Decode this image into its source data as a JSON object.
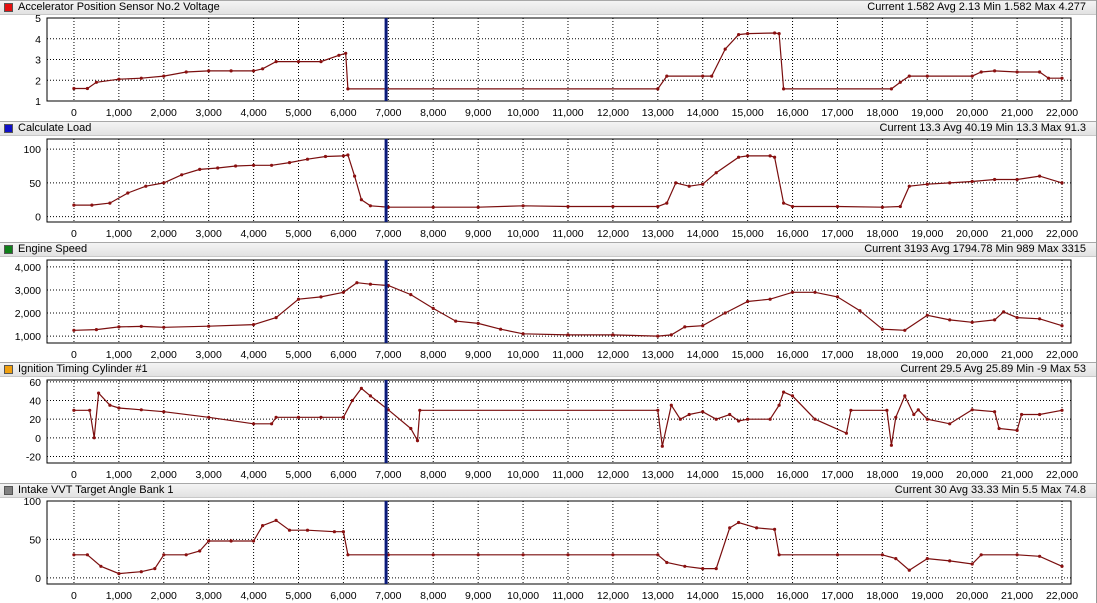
{
  "cursor_x": 6950,
  "chart_data": [
    {
      "type": "line",
      "title": "Accelerator Position Sensor No.2 Voltage",
      "color": "#e41010",
      "stats": "Current 1.582 Avg 2.13 Min 1.582 Max 4.277",
      "xlim": [
        -600,
        22200
      ],
      "ylim": [
        1,
        5
      ],
      "yticks": [
        1,
        2,
        3,
        4,
        5
      ],
      "xticks": [
        0,
        1000,
        2000,
        3000,
        4000,
        5000,
        6000,
        7000,
        8000,
        9000,
        10000,
        11000,
        12000,
        13000,
        14000,
        15000,
        16000,
        17000,
        18000,
        19000,
        20000,
        21000,
        22000
      ],
      "xtick_labels": [
        "0",
        "1,000",
        "2,000",
        "3,000",
        "4,000",
        "5,000",
        "6,000",
        "7,000",
        "8,000",
        "9,000",
        "10,000",
        "11,000",
        "12,000",
        "13,000",
        "14,000",
        "15,000",
        "16,000",
        "17,000",
        "18,000",
        "19,000",
        "20,000",
        "21,000",
        "22,000"
      ],
      "ytick_labels": [
        "1",
        "2",
        "3",
        "4",
        "5"
      ],
      "series": [
        {
          "x": [
            0,
            300,
            500,
            1000,
            1500,
            2000,
            2500,
            3000,
            3500,
            4000,
            4200,
            4500,
            5000,
            5500,
            5900,
            6050,
            6100,
            13000,
            13200,
            14000,
            14200,
            14500,
            14800,
            15000,
            15600,
            15700,
            15800,
            18200,
            18400,
            18600,
            19000,
            20000,
            20200,
            20500,
            21000,
            21500,
            21700,
            22000
          ],
          "y": [
            1.6,
            1.6,
            1.9,
            2.05,
            2.1,
            2.2,
            2.4,
            2.45,
            2.45,
            2.45,
            2.55,
            2.9,
            2.9,
            2.9,
            3.2,
            3.3,
            1.582,
            1.582,
            2.2,
            2.2,
            2.2,
            3.5,
            4.2,
            4.25,
            4.277,
            4.25,
            1.582,
            1.582,
            1.9,
            2.2,
            2.2,
            2.2,
            2.4,
            2.45,
            2.4,
            2.4,
            2.1,
            2.1
          ]
        }
      ]
    },
    {
      "type": "line",
      "title": "Calculate Load",
      "color": "#1010c8",
      "stats": "Current 13.3 Avg 40.19 Min 13.3 Max 91.3",
      "xlim": [
        -600,
        22200
      ],
      "ylim": [
        -8,
        115
      ],
      "yticks": [
        0,
        50,
        100
      ],
      "xticks": [
        0,
        1000,
        2000,
        3000,
        4000,
        5000,
        6000,
        7000,
        8000,
        9000,
        10000,
        11000,
        12000,
        13000,
        14000,
        15000,
        16000,
        17000,
        18000,
        19000,
        20000,
        21000,
        22000
      ],
      "xtick_labels": [
        "0",
        "1,000",
        "2,000",
        "3,000",
        "4,000",
        "5,000",
        "6,000",
        "7,000",
        "8,000",
        "9,000",
        "10,000",
        "11,000",
        "12,000",
        "13,000",
        "14,000",
        "15,000",
        "16,000",
        "17,000",
        "18,000",
        "19,000",
        "20,000",
        "21,000",
        "22,000"
      ],
      "ytick_labels": [
        "0",
        "50",
        "100"
      ],
      "series": [
        {
          "x": [
            0,
            400,
            800,
            1200,
            1600,
            2000,
            2400,
            2800,
            3200,
            3600,
            4000,
            4400,
            4800,
            5200,
            5600,
            6000,
            6100,
            6250,
            6400,
            6600,
            7000,
            8000,
            9000,
            10000,
            11000,
            12000,
            13000,
            13200,
            13400,
            13700,
            14000,
            14300,
            14800,
            15000,
            15500,
            15600,
            15800,
            16000,
            17000,
            18000,
            18400,
            18600,
            19000,
            19500,
            20000,
            20500,
            21000,
            21500,
            22000
          ],
          "y": [
            17,
            17,
            20,
            35,
            45,
            50,
            62,
            70,
            72,
            75,
            76,
            76,
            80,
            85,
            89,
            90,
            91.3,
            60,
            25,
            16,
            14,
            14,
            14,
            16,
            15,
            15,
            15,
            20,
            50,
            45,
            48,
            65,
            88,
            90,
            90,
            88,
            20,
            15,
            15,
            14,
            15,
            45,
            48,
            50,
            52,
            55,
            55,
            60,
            50
          ]
        }
      ]
    },
    {
      "type": "line",
      "title": "Engine Speed",
      "color": "#10801a",
      "stats": "Current 3193 Avg 1794.78 Min 989 Max 3315",
      "xlim": [
        -600,
        22200
      ],
      "ylim": [
        700,
        4300
      ],
      "yticks": [
        1000,
        2000,
        3000,
        4000
      ],
      "xticks": [
        0,
        1000,
        2000,
        3000,
        4000,
        5000,
        6000,
        7000,
        8000,
        9000,
        10000,
        11000,
        12000,
        13000,
        14000,
        15000,
        16000,
        17000,
        18000,
        19000,
        20000,
        21000,
        22000
      ],
      "xtick_labels": [
        "0",
        "1,000",
        "2,000",
        "3,000",
        "4,000",
        "5,000",
        "6,000",
        "7,000",
        "8,000",
        "9,000",
        "10,000",
        "11,000",
        "12,000",
        "13,000",
        "14,000",
        "15,000",
        "16,000",
        "17,000",
        "18,000",
        "19,000",
        "20,000",
        "21,000",
        "22,000"
      ],
      "ytick_labels": [
        "1,000",
        "2,000",
        "3,000",
        "4,000"
      ],
      "series": [
        {
          "x": [
            0,
            500,
            1000,
            1500,
            2000,
            3000,
            4000,
            4500,
            5000,
            5500,
            6000,
            6300,
            6600,
            7000,
            7500,
            8000,
            8500,
            9000,
            9500,
            10000,
            11000,
            12000,
            13000,
            13300,
            13600,
            14000,
            14500,
            15000,
            15500,
            16000,
            16500,
            17000,
            17500,
            18000,
            18500,
            19000,
            19500,
            20000,
            20500,
            20700,
            21000,
            21500,
            22000
          ],
          "y": [
            1250,
            1280,
            1400,
            1420,
            1380,
            1430,
            1500,
            1800,
            2600,
            2700,
            2900,
            3315,
            3250,
            3193,
            2800,
            2200,
            1650,
            1550,
            1300,
            1100,
            1050,
            1050,
            1000,
            1050,
            1400,
            1450,
            2000,
            2500,
            2600,
            2900,
            2900,
            2700,
            2100,
            1300,
            1250,
            1900,
            1700,
            1600,
            1700,
            2050,
            1800,
            1750,
            1450
          ]
        }
      ]
    },
    {
      "type": "line",
      "title": "Ignition Timing Cylinder #1",
      "color": "#f0a010",
      "stats": "Current 29.5 Avg 25.89 Min -9 Max 53",
      "xlim": [
        -600,
        22200
      ],
      "ylim": [
        -27,
        62
      ],
      "yticks": [
        -20,
        0,
        20,
        40,
        60
      ],
      "xticks": [
        0,
        1000,
        2000,
        3000,
        4000,
        5000,
        6000,
        7000,
        8000,
        9000,
        10000,
        11000,
        12000,
        13000,
        14000,
        15000,
        16000,
        17000,
        18000,
        19000,
        20000,
        21000,
        22000
      ],
      "xtick_labels": [
        "0",
        "1,000",
        "2,000",
        "3,000",
        "4,000",
        "5,000",
        "6,000",
        "7,000",
        "8,000",
        "9,000",
        "10,000",
        "11,000",
        "12,000",
        "13,000",
        "14,000",
        "15,000",
        "16,000",
        "17,000",
        "18,000",
        "19,000",
        "20,000",
        "21,000",
        "22,000"
      ],
      "ytick_labels": [
        "-20",
        "0",
        "20",
        "40",
        "60"
      ],
      "series": [
        {
          "x": [
            0,
            350,
            450,
            550,
            800,
            1000,
            1500,
            2000,
            3000,
            4000,
            4400,
            4500,
            5000,
            5500,
            6000,
            6200,
            6400,
            6600,
            7000,
            7500,
            7650,
            7700,
            13000,
            13100,
            13300,
            13500,
            13700,
            14000,
            14300,
            14600,
            14800,
            15000,
            15500,
            15700,
            15800,
            16000,
            16500,
            17200,
            17300,
            18100,
            18200,
            18300,
            18500,
            18700,
            18800,
            19000,
            19500,
            20000,
            20500,
            20600,
            21000,
            21100,
            21500,
            22000
          ],
          "y": [
            29.5,
            29.5,
            0,
            48,
            35,
            32,
            30,
            28,
            22,
            15,
            15,
            22,
            22,
            22,
            22,
            40,
            53,
            45,
            30,
            10,
            -3,
            29.5,
            29.5,
            -9,
            35,
            20,
            25,
            28,
            20,
            25,
            18,
            20,
            20,
            35,
            49,
            45,
            20,
            5,
            29.5,
            29.5,
            -8,
            22,
            45,
            25,
            30,
            20,
            15,
            30,
            28,
            10,
            8,
            25,
            25,
            29.5
          ]
        }
      ]
    },
    {
      "type": "line",
      "title": "Intake VVT Target Angle Bank 1",
      "color": "#808080",
      "stats": "Current 30 Avg 33.33 Min 5.5 Max 74.8",
      "xlim": [
        -600,
        22200
      ],
      "ylim": [
        -8,
        100
      ],
      "yticks": [
        0,
        50,
        100
      ],
      "xticks": [
        0,
        1000,
        2000,
        3000,
        4000,
        5000,
        6000,
        7000,
        8000,
        9000,
        10000,
        11000,
        12000,
        13000,
        14000,
        15000,
        16000,
        17000,
        18000,
        19000,
        20000,
        21000,
        22000
      ],
      "xtick_labels": [
        "0",
        "1,000",
        "2,000",
        "3,000",
        "4,000",
        "5,000",
        "6,000",
        "7,000",
        "8,000",
        "9,000",
        "10,000",
        "11,000",
        "12,000",
        "13,000",
        "14,000",
        "15,000",
        "16,000",
        "17,000",
        "18,000",
        "19,000",
        "20,000",
        "21,000",
        "22,000"
      ],
      "ytick_labels": [
        "0",
        "50",
        "100"
      ],
      "series": [
        {
          "x": [
            0,
            300,
            600,
            1000,
            1500,
            1800,
            2000,
            2500,
            2800,
            3000,
            3500,
            4000,
            4200,
            4500,
            4800,
            5200,
            5800,
            6000,
            6100,
            7000,
            8000,
            9000,
            10000,
            11000,
            12000,
            13000,
            13200,
            13600,
            14000,
            14300,
            14600,
            14800,
            15200,
            15600,
            15700,
            17000,
            18000,
            18300,
            18600,
            19000,
            19500,
            20000,
            20200,
            21000,
            21500,
            22000
          ],
          "y": [
            30,
            30,
            15,
            5.5,
            8,
            12,
            30,
            30,
            35,
            48,
            48,
            48,
            68,
            74.8,
            62,
            62,
            60,
            60,
            30,
            30,
            30,
            30,
            30,
            30,
            30,
            30,
            20,
            15,
            12,
            12,
            65,
            72,
            65,
            63,
            30,
            30,
            30,
            25,
            10,
            25,
            22,
            18,
            30,
            30,
            28,
            15
          ]
        }
      ]
    }
  ]
}
